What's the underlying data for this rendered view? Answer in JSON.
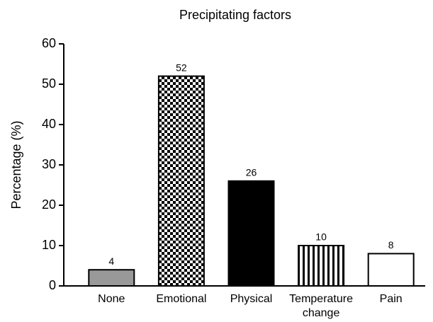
{
  "chart_data": {
    "type": "bar",
    "title": "Precipitating factors",
    "y_label": "Percentage (%)",
    "categories": [
      "None",
      "Emotional",
      "Physical",
      "Temperature change",
      "Pain"
    ],
    "values": [
      4,
      52,
      26,
      10,
      8
    ],
    "colors": [
      "#999999",
      "#000000",
      "#000000",
      "#000000",
      "#ffffff"
    ],
    "patterns": [
      "solid",
      "checker",
      "solid",
      "vstripes",
      "solid"
    ],
    "ylim": [
      0,
      60
    ],
    "yticks": [
      0,
      10,
      20,
      30,
      40,
      50,
      60
    ],
    "grid": false
  }
}
